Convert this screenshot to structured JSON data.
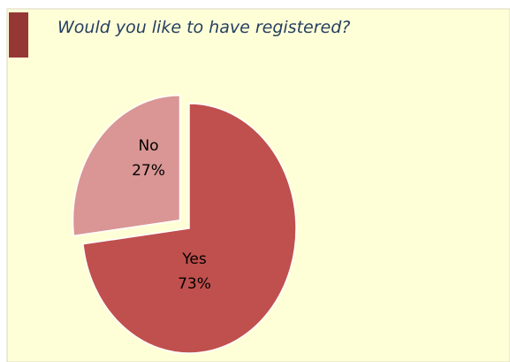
{
  "chart_data": {
    "type": "pie",
    "title": "Would you like to have registered?",
    "categories": [
      "Yes",
      "No"
    ],
    "values": [
      73,
      27
    ],
    "value_labels": [
      "73%",
      "27%"
    ],
    "colors": [
      "#c0504d",
      "#d99694"
    ],
    "explode": [
      0,
      1
    ]
  }
}
